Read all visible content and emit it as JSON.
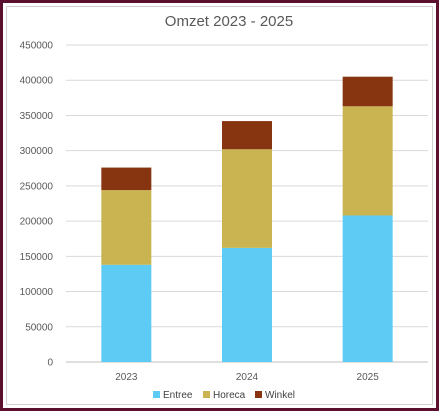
{
  "chart_data": {
    "type": "bar",
    "stacked": true,
    "title": "Omzet 2023 - 2025",
    "categories": [
      "2023",
      "2024",
      "2025"
    ],
    "series": [
      {
        "name": "Entree",
        "color": "#5ecbf4",
        "values": [
          138000,
          162000,
          208000
        ]
      },
      {
        "name": "Horeca",
        "color": "#c9b451",
        "values": [
          106000,
          140000,
          155000
        ]
      },
      {
        "name": "Winkel",
        "color": "#873510",
        "values": [
          32000,
          40000,
          42000
        ]
      }
    ],
    "ylim": [
      0,
      450000
    ],
    "yticks": [
      "0",
      "50000",
      "100000",
      "150000",
      "200000",
      "250000",
      "300000",
      "350000",
      "400000",
      "450000"
    ],
    "grid": true,
    "legend_position": "bottom",
    "xlabel": "",
    "ylabel": ""
  }
}
